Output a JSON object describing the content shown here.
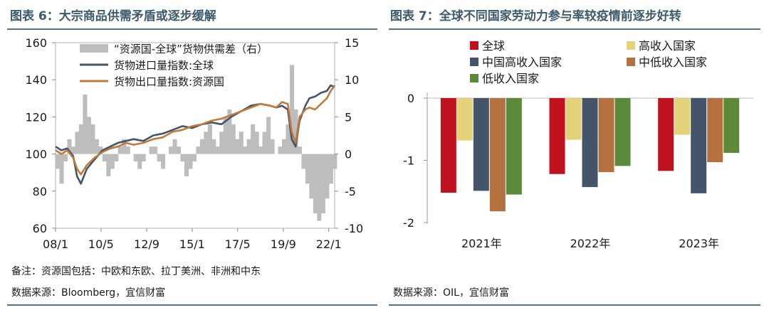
{
  "left_title": "图表 6：大宗商品供需矛盾或逐步缓解",
  "right_title": "图表 7：全球不同国家劳动力参与率较疫情前逐步好转",
  "left_note": "备注：资源国包括：中欧和东欧、拉丁美洲、非洲和中东",
  "left_source": "数据来源：Bloomberg，宜信财富",
  "right_source": "数据来源：OIL，宜信财富",
  "chart_data": [
    {
      "type": "line",
      "title": "图表 6：大宗商品供需矛盾或逐步缓解",
      "xticks": [
        "08/1",
        "10/5",
        "12/9",
        "15/1",
        "17/5",
        "19/9",
        "22/1"
      ],
      "xtick_t": [
        2008.0,
        2010.33,
        2012.67,
        2015.0,
        2017.33,
        2019.67,
        2022.0
      ],
      "xlim": [
        2008.0,
        2022.3
      ],
      "ylim_left": [
        60,
        160
      ],
      "yticks_left": [
        60,
        80,
        100,
        120,
        140,
        160
      ],
      "ylim_right": [
        -10,
        15
      ],
      "yticks_right": [
        -10,
        -5,
        0,
        5,
        10,
        15
      ],
      "legend": [
        "“资源国-全球”货物供需差（右）",
        "货物进口量指数:全球",
        "货物出口量指数:资源国"
      ],
      "colors": {
        "gap": "#bdbdbd",
        "import": "#44546a",
        "export": "#c07a3e"
      },
      "series": [
        {
          "name": "“资源国-全球”货物供需差（右）",
          "axis": "right",
          "kind": "area",
          "x": [
            2008.0,
            2008.2,
            2008.4,
            2008.6,
            2008.8,
            2009.0,
            2009.2,
            2009.4,
            2009.6,
            2009.8,
            2010.0,
            2010.2,
            2010.4,
            2010.6,
            2010.8,
            2011.0,
            2011.2,
            2011.4,
            2011.6,
            2011.8,
            2012.0,
            2012.2,
            2012.4,
            2012.6,
            2012.8,
            2013.0,
            2013.2,
            2013.4,
            2013.6,
            2013.8,
            2014.0,
            2014.2,
            2014.4,
            2014.6,
            2014.8,
            2015.0,
            2015.2,
            2015.4,
            2015.6,
            2015.8,
            2016.0,
            2016.2,
            2016.4,
            2016.6,
            2016.8,
            2017.0,
            2017.2,
            2017.4,
            2017.6,
            2017.8,
            2018.0,
            2018.2,
            2018.4,
            2018.6,
            2018.8,
            2019.0,
            2019.2,
            2019.4,
            2019.6,
            2019.8,
            2020.0,
            2020.2,
            2020.4,
            2020.6,
            2020.8,
            2021.0,
            2021.2,
            2021.4,
            2021.6,
            2021.8,
            2022.0,
            2022.2
          ],
          "values": [
            -2,
            -4,
            -1,
            2,
            1,
            3,
            4,
            8,
            5,
            4,
            2,
            1,
            -1,
            -3,
            -2,
            -1,
            1,
            2,
            1,
            0,
            -1,
            -2,
            -1,
            0,
            1,
            1,
            -1,
            -2,
            0,
            1,
            2,
            1,
            -1,
            -3,
            -2,
            -1,
            1,
            2,
            3,
            4,
            2,
            1,
            3,
            5,
            6,
            4,
            2,
            3,
            1,
            2,
            4,
            3,
            1,
            3,
            5,
            2,
            0,
            1,
            2,
            4,
            12,
            6,
            1,
            -2,
            -4,
            -6,
            -8,
            -9,
            -8,
            -6,
            -4,
            -2
          ]
        },
        {
          "name": "货物进口量指数:全球",
          "axis": "left",
          "kind": "line",
          "x": [
            2008.0,
            2008.3,
            2008.6,
            2008.9,
            2009.1,
            2009.3,
            2009.6,
            2010.0,
            2010.4,
            2010.8,
            2011.2,
            2011.6,
            2012.0,
            2012.5,
            2013.0,
            2013.5,
            2014.0,
            2014.5,
            2015.0,
            2015.5,
            2016.0,
            2016.5,
            2017.0,
            2017.5,
            2018.0,
            2018.5,
            2019.0,
            2019.3,
            2019.6,
            2019.9,
            2020.1,
            2020.3,
            2020.5,
            2020.8,
            2021.0,
            2021.3,
            2021.6,
            2021.9,
            2022.1,
            2022.3
          ],
          "values": [
            104,
            102,
            103,
            99,
            88,
            84,
            92,
            97,
            102,
            104,
            106,
            107,
            108,
            107,
            110,
            111,
            113,
            115,
            114,
            116,
            117,
            116,
            120,
            123,
            126,
            127,
            126,
            125,
            126,
            124,
            108,
            104,
            118,
            126,
            130,
            131,
            133,
            134,
            137,
            136
          ]
        },
        {
          "name": "货物出口量指数:资源国",
          "axis": "left",
          "kind": "line",
          "x": [
            2008.0,
            2008.3,
            2008.6,
            2008.9,
            2009.1,
            2009.3,
            2009.6,
            2010.0,
            2010.4,
            2010.8,
            2011.2,
            2011.6,
            2012.0,
            2012.5,
            2013.0,
            2013.5,
            2014.0,
            2014.5,
            2015.0,
            2015.5,
            2016.0,
            2016.5,
            2017.0,
            2017.5,
            2018.0,
            2018.5,
            2019.0,
            2019.3,
            2019.6,
            2019.9,
            2020.1,
            2020.3,
            2020.5,
            2020.8,
            2021.0,
            2021.3,
            2021.6,
            2021.9,
            2022.1,
            2022.3
          ],
          "values": [
            102,
            100,
            102,
            98,
            92,
            89,
            94,
            98,
            101,
            103,
            104,
            106,
            105,
            106,
            108,
            109,
            112,
            113,
            115,
            116,
            118,
            119,
            121,
            123,
            125,
            127,
            126,
            125,
            128,
            127,
            112,
            106,
            120,
            124,
            125,
            124,
            127,
            130,
            134,
            137
          ]
        }
      ]
    },
    {
      "type": "bar",
      "title": "图表 7：全球不同国家劳动力参与率较疫情前逐步好转",
      "categories": [
        "2021年",
        "2022年",
        "2023年"
      ],
      "ylim": [
        -2,
        0
      ],
      "yticks": [
        0,
        -1,
        -2
      ],
      "series": [
        {
          "name": "全球",
          "color": "#c0111f",
          "values": [
            -1.52,
            -1.22,
            -1.17
          ]
        },
        {
          "name": "高收入国家",
          "color": "#e4d27a",
          "values": [
            -0.68,
            -0.67,
            -0.59
          ]
        },
        {
          "name": "中国高收入国家",
          "color": "#44546a",
          "values": [
            -1.49,
            -1.43,
            -1.53
          ]
        },
        {
          "name": "中低收入国家",
          "color": "#b5703f",
          "values": [
            -1.82,
            -1.19,
            -1.03
          ]
        },
        {
          "name": "低收入国家",
          "color": "#5a8a3a",
          "values": [
            -1.55,
            -1.09,
            -0.88
          ]
        }
      ]
    }
  ]
}
